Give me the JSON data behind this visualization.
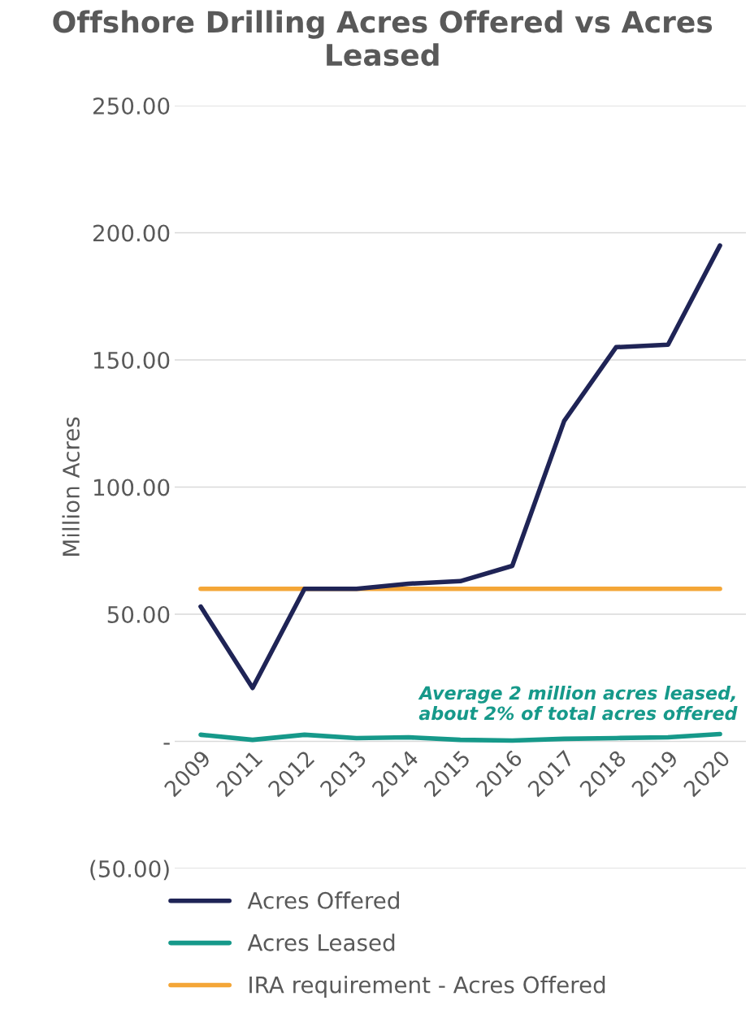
{
  "chart_data": {
    "type": "line",
    "title": "Offshore Drilling Acres Offered vs Acres Leased",
    "ylabel": "Million Acres",
    "categories": [
      "2009",
      "2011",
      "2012",
      "2013",
      "2014",
      "2015",
      "2016",
      "2017",
      "2018",
      "2019",
      "2020"
    ],
    "series": [
      {
        "name": "Acres Offered",
        "color": "#1f2456",
        "values": [
          53,
          21,
          60,
          60,
          62,
          63,
          69,
          126,
          155,
          156,
          195
        ]
      },
      {
        "name": "Acres Leased",
        "color": "#16998a",
        "values": [
          2.6,
          0.6,
          2.6,
          1.3,
          1.6,
          0.6,
          0.3,
          1,
          1.3,
          1.6,
          2.9
        ]
      },
      {
        "name": "IRA requirement - Acres Offered",
        "color": "#f4a637",
        "values": [
          60,
          60,
          60,
          60,
          60,
          60,
          60,
          60,
          60,
          60,
          60
        ]
      }
    ],
    "ylim": [
      -50,
      250
    ],
    "yticks": [
      {
        "value": -50,
        "label": "(50.00)"
      },
      {
        "value": 0,
        "label": "-"
      },
      {
        "value": 50,
        "label": "50.00"
      },
      {
        "value": 100,
        "label": "100.00"
      },
      {
        "value": 150,
        "label": "150.00"
      },
      {
        "value": 200,
        "label": "200.00"
      },
      {
        "value": 250,
        "label": "250.00"
      }
    ],
    "grid": "y",
    "legend": "bottom",
    "marker": "none",
    "line_style": "solid",
    "annotations": [
      "Average 2 million acres leased,\nabout 2% of total acres offered"
    ]
  }
}
